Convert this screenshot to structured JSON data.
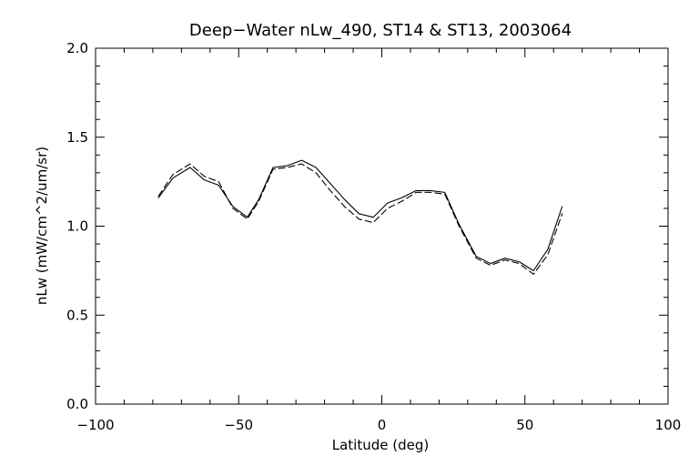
{
  "chart_data": {
    "type": "line",
    "title": "Deep−Water nLw_490, ST14 & ST13, 2003064",
    "xlabel": "Latitude (deg)",
    "ylabel": "nLw (mW/cm^2/um/sr)",
    "xlim": [
      -100,
      100
    ],
    "ylim": [
      0.0,
      2.0
    ],
    "x_ticks": [
      -100,
      -50,
      0,
      50,
      100
    ],
    "x_tick_labels": [
      "−100",
      "−50",
      "0",
      "50",
      "100"
    ],
    "y_ticks": [
      0.0,
      0.5,
      1.0,
      1.5,
      2.0
    ],
    "y_tick_labels": [
      "0.0",
      "0.5",
      "1.0",
      "1.5",
      "2.0"
    ],
    "grid": false,
    "legend": "none",
    "series": [
      {
        "line_style": "solid",
        "color": "#000000",
        "points": [
          [
            -78,
            1.16
          ],
          [
            -73,
            1.27
          ],
          [
            -67,
            1.33
          ],
          [
            -62,
            1.26
          ],
          [
            -57,
            1.23
          ],
          [
            -52,
            1.11
          ],
          [
            -47,
            1.05
          ],
          [
            -43,
            1.15
          ],
          [
            -38,
            1.33
          ],
          [
            -33,
            1.34
          ],
          [
            -28,
            1.37
          ],
          [
            -23,
            1.33
          ],
          [
            -18,
            1.24
          ],
          [
            -13,
            1.15
          ],
          [
            -8,
            1.07
          ],
          [
            -3,
            1.05
          ],
          [
            2,
            1.13
          ],
          [
            7,
            1.16
          ],
          [
            12,
            1.2
          ],
          [
            17,
            1.2
          ],
          [
            22,
            1.19
          ],
          [
            27,
            1.01
          ],
          [
            33,
            0.83
          ],
          [
            38,
            0.79
          ],
          [
            43,
            0.82
          ],
          [
            48,
            0.8
          ],
          [
            53,
            0.75
          ],
          [
            58,
            0.87
          ],
          [
            63,
            1.11
          ]
        ]
      },
      {
        "line_style": "dashed",
        "color": "#000000",
        "points": [
          [
            -78,
            1.17
          ],
          [
            -73,
            1.29
          ],
          [
            -67,
            1.35
          ],
          [
            -62,
            1.28
          ],
          [
            -57,
            1.25
          ],
          [
            -52,
            1.1
          ],
          [
            -47,
            1.04
          ],
          [
            -43,
            1.14
          ],
          [
            -38,
            1.32
          ],
          [
            -33,
            1.33
          ],
          [
            -28,
            1.35
          ],
          [
            -23,
            1.3
          ],
          [
            -18,
            1.2
          ],
          [
            -13,
            1.11
          ],
          [
            -8,
            1.04
          ],
          [
            -3,
            1.02
          ],
          [
            2,
            1.1
          ],
          [
            7,
            1.14
          ],
          [
            12,
            1.19
          ],
          [
            17,
            1.19
          ],
          [
            22,
            1.18
          ],
          [
            27,
            1.0
          ],
          [
            33,
            0.82
          ],
          [
            38,
            0.78
          ],
          [
            43,
            0.81
          ],
          [
            48,
            0.79
          ],
          [
            53,
            0.73
          ],
          [
            58,
            0.84
          ],
          [
            63,
            1.07
          ]
        ]
      }
    ]
  }
}
